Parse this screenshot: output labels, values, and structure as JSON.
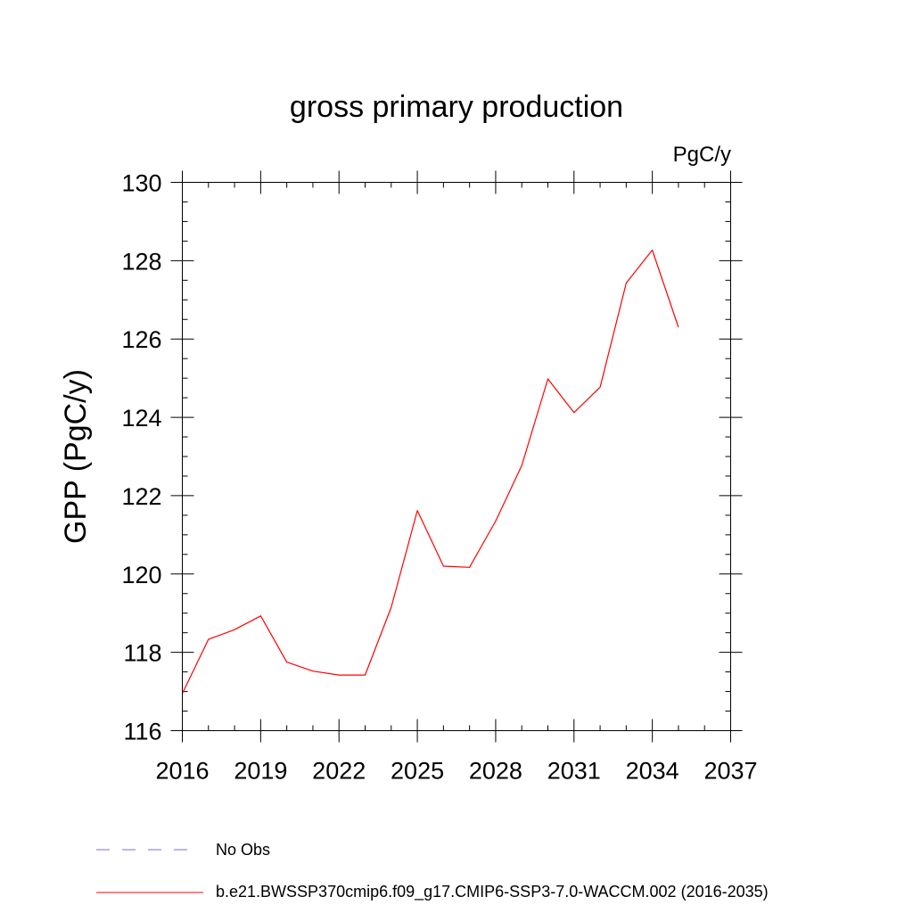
{
  "chart_data": {
    "type": "line",
    "title": "gross primary production",
    "units": "PgC/y",
    "xlabel": "",
    "ylabel": "GPP  (PgC/y)",
    "xlim": [
      2016,
      2037
    ],
    "ylim": [
      116,
      130
    ],
    "xticks": [
      "2016",
      "2019",
      "2022",
      "2025",
      "2028",
      "2031",
      "2034",
      "2037"
    ],
    "yticks": [
      "116",
      "118",
      "120",
      "122",
      "124",
      "126",
      "128",
      "130"
    ],
    "x": [
      2016,
      2017,
      2018,
      2019,
      2020,
      2021,
      2022,
      2023,
      2024,
      2025,
      2026,
      2027,
      2028,
      2029,
      2030,
      2031,
      2032,
      2033,
      2034,
      2035
    ],
    "series": [
      {
        "name": "b.e21.BWSSP370cmip6.f09_g17.CMIP6-SSP3-7.0-WACCM.002 (2016-2035)",
        "color": "#ff0000",
        "style": "solid",
        "values": [
          116.95,
          118.33,
          118.58,
          118.93,
          117.75,
          117.52,
          117.42,
          117.42,
          119.15,
          121.62,
          120.2,
          120.17,
          121.35,
          122.77,
          124.98,
          124.12,
          124.77,
          127.43,
          128.27,
          126.3
        ]
      }
    ],
    "legend": {
      "placement": "bottom",
      "entries": [
        {
          "label": "No Obs",
          "color": "#7b6fd4",
          "style": "dashed"
        },
        {
          "label": "b.e21.BWSSP370cmip6.f09_g17.CMIP6-SSP3-7.0-WACCM.002 (2016-2035)",
          "color": "#ff0000",
          "style": "solid"
        }
      ]
    },
    "grid": false
  }
}
